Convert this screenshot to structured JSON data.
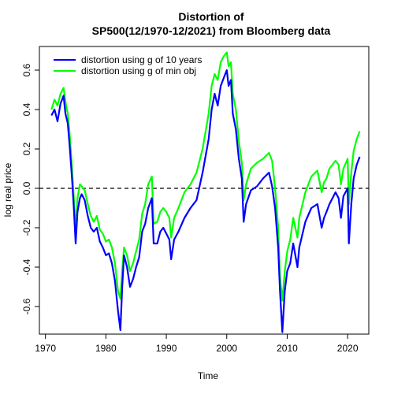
{
  "chart_data": {
    "type": "line",
    "title_line1": "Distortion of",
    "title_line2": "SP500(12/1970-12/2021) from Bloomberg data",
    "xlabel": "Time",
    "ylabel": "log real price",
    "xlim": [
      1969.0,
      2023.5
    ],
    "ylim": [
      -0.74,
      0.72
    ],
    "xticks": [
      1970,
      1980,
      1990,
      2000,
      2010,
      2020
    ],
    "xtick_labels": [
      "1970",
      "1980",
      "1990",
      "2000",
      "2010",
      "2020"
    ],
    "yticks": [
      -0.6,
      -0.4,
      -0.2,
      0.0,
      0.2,
      0.4,
      0.6
    ],
    "ytick_labels": [
      "-0.6",
      "-0.4",
      "-0.2",
      "0.0",
      "0.2",
      "0.4",
      "0.6"
    ],
    "reference_line": {
      "y": 0.0,
      "style": "dashed",
      "color": "#000000"
    },
    "legend": {
      "position": "top-left"
    },
    "series": [
      {
        "name": "distortion using g of 10 years",
        "color": "#0000ff",
        "x": [
          1971.0,
          1971.5,
          1972.0,
          1972.5,
          1973.0,
          1973.3,
          1973.7,
          1974.0,
          1974.4,
          1974.7,
          1975.0,
          1975.3,
          1975.7,
          1976.0,
          1976.5,
          1977.0,
          1977.5,
          1978.0,
          1978.5,
          1979.0,
          1979.5,
          1980.0,
          1980.5,
          1981.0,
          1981.5,
          1982.0,
          1982.4,
          1982.7,
          1983.0,
          1983.5,
          1984.0,
          1984.5,
          1985.0,
          1985.5,
          1986.0,
          1986.5,
          1987.0,
          1987.6,
          1987.9,
          1988.5,
          1989.0,
          1989.5,
          1990.0,
          1990.5,
          1990.8,
          1991.3,
          1992.0,
          1993.0,
          1994.0,
          1995.0,
          1996.0,
          1997.0,
          1997.5,
          1998.0,
          1998.5,
          1999.0,
          1999.5,
          2000.0,
          2000.3,
          2000.7,
          2001.0,
          2001.5,
          2002.0,
          2002.5,
          2002.8,
          2003.2,
          2004.0,
          2005.0,
          2006.0,
          2007.0,
          2007.5,
          2008.0,
          2008.5,
          2008.8,
          2009.2,
          2009.6,
          2010.0,
          2010.5,
          2011.0,
          2011.7,
          2012.0,
          2013.0,
          2014.0,
          2015.0,
          2015.7,
          2016.1,
          2016.5,
          2017.0,
          2018.0,
          2018.5,
          2018.9,
          2019.3,
          2020.0,
          2020.2,
          2020.6,
          2021.0,
          2021.5,
          2022.0
        ],
        "values": [
          0.37,
          0.4,
          0.34,
          0.43,
          0.47,
          0.38,
          0.33,
          0.22,
          0.05,
          -0.1,
          -0.28,
          -0.12,
          -0.05,
          -0.03,
          -0.06,
          -0.14,
          -0.2,
          -0.22,
          -0.2,
          -0.27,
          -0.3,
          -0.34,
          -0.33,
          -0.38,
          -0.47,
          -0.62,
          -0.72,
          -0.5,
          -0.34,
          -0.4,
          -0.5,
          -0.46,
          -0.4,
          -0.35,
          -0.22,
          -0.18,
          -0.1,
          -0.05,
          -0.28,
          -0.28,
          -0.22,
          -0.2,
          -0.23,
          -0.26,
          -0.36,
          -0.26,
          -0.22,
          -0.15,
          -0.1,
          -0.06,
          0.08,
          0.25,
          0.4,
          0.48,
          0.42,
          0.52,
          0.56,
          0.6,
          0.52,
          0.55,
          0.38,
          0.3,
          0.15,
          0.05,
          -0.17,
          -0.08,
          -0.01,
          0.01,
          0.05,
          0.08,
          0.01,
          -0.1,
          -0.3,
          -0.52,
          -0.73,
          -0.52,
          -0.42,
          -0.38,
          -0.28,
          -0.4,
          -0.3,
          -0.17,
          -0.1,
          -0.08,
          -0.2,
          -0.15,
          -0.12,
          -0.08,
          -0.02,
          -0.05,
          -0.15,
          -0.04,
          0.0,
          -0.28,
          -0.08,
          0.05,
          0.12,
          0.16
        ]
      },
      {
        "name": "distortion using g of min obj",
        "color": "#00ff00",
        "x": [
          1971.0,
          1971.5,
          1972.0,
          1972.5,
          1973.0,
          1973.3,
          1973.7,
          1974.0,
          1974.4,
          1974.7,
          1975.0,
          1975.3,
          1975.7,
          1976.0,
          1976.5,
          1977.0,
          1977.5,
          1978.0,
          1978.5,
          1979.0,
          1979.5,
          1980.0,
          1980.5,
          1981.0,
          1981.5,
          1982.0,
          1982.4,
          1982.7,
          1983.0,
          1983.5,
          1984.0,
          1984.5,
          1985.0,
          1985.5,
          1986.0,
          1986.5,
          1987.0,
          1987.6,
          1987.9,
          1988.5,
          1989.0,
          1989.5,
          1990.0,
          1990.5,
          1990.8,
          1991.3,
          1992.0,
          1993.0,
          1994.0,
          1995.0,
          1996.0,
          1997.0,
          1997.5,
          1998.0,
          1998.5,
          1999.0,
          1999.5,
          2000.0,
          2000.3,
          2000.7,
          2001.0,
          2001.5,
          2002.0,
          2002.5,
          2002.8,
          2003.2,
          2004.0,
          2005.0,
          2006.0,
          2007.0,
          2007.5,
          2008.0,
          2008.5,
          2008.8,
          2009.2,
          2009.6,
          2010.0,
          2010.5,
          2011.0,
          2011.7,
          2012.0,
          2013.0,
          2014.0,
          2015.0,
          2015.7,
          2016.1,
          2016.5,
          2017.0,
          2018.0,
          2018.5,
          2018.9,
          2019.3,
          2020.0,
          2020.2,
          2020.6,
          2021.0,
          2021.5,
          2022.0
        ],
        "values": [
          0.4,
          0.45,
          0.42,
          0.48,
          0.51,
          0.44,
          0.38,
          0.28,
          0.1,
          -0.05,
          -0.22,
          -0.05,
          0.02,
          0.01,
          -0.01,
          -0.08,
          -0.14,
          -0.17,
          -0.14,
          -0.21,
          -0.23,
          -0.27,
          -0.26,
          -0.3,
          -0.38,
          -0.52,
          -0.56,
          -0.42,
          -0.3,
          -0.34,
          -0.42,
          -0.38,
          -0.32,
          -0.26,
          -0.13,
          -0.08,
          0.02,
          0.06,
          -0.18,
          -0.17,
          -0.12,
          -0.1,
          -0.12,
          -0.15,
          -0.25,
          -0.15,
          -0.1,
          -0.02,
          0.02,
          0.08,
          0.2,
          0.38,
          0.52,
          0.58,
          0.55,
          0.64,
          0.67,
          0.69,
          0.62,
          0.64,
          0.48,
          0.4,
          0.24,
          0.13,
          -0.06,
          0.02,
          0.1,
          0.13,
          0.15,
          0.18,
          0.14,
          0.0,
          -0.2,
          -0.45,
          -0.57,
          -0.42,
          -0.32,
          -0.26,
          -0.15,
          -0.25,
          -0.15,
          -0.02,
          0.06,
          0.09,
          -0.02,
          0.03,
          0.05,
          0.1,
          0.14,
          0.12,
          0.02,
          0.1,
          0.15,
          -0.08,
          0.08,
          0.19,
          0.25,
          0.29
        ]
      }
    ]
  }
}
